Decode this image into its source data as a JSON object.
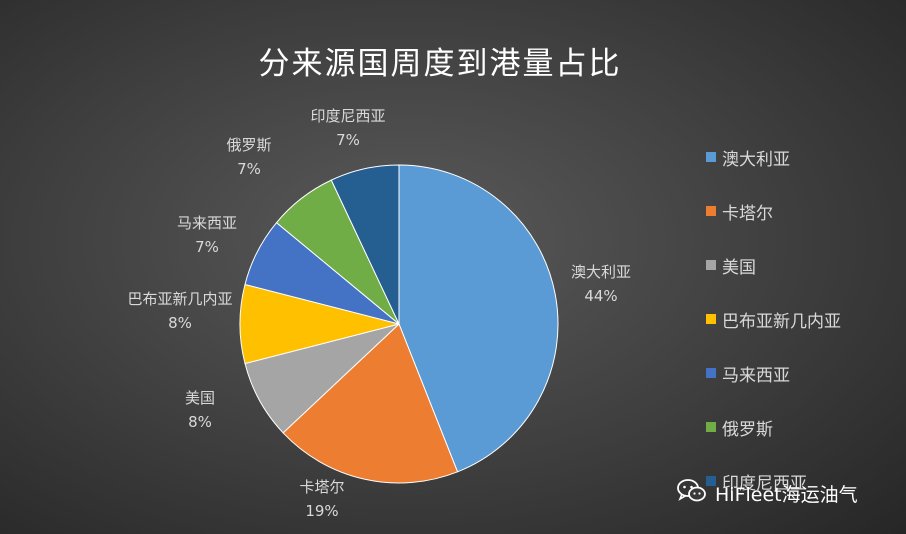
{
  "chart_data": {
    "type": "pie",
    "title": "分来源国周度到港量占比",
    "slices": [
      {
        "label": "澳大利亚",
        "percent": 44,
        "percent_text": "44%",
        "color": "#5b9bd5"
      },
      {
        "label": "卡塔尔",
        "percent": 19,
        "percent_text": "19%",
        "color": "#ed7d31"
      },
      {
        "label": "美国",
        "percent": 8,
        "percent_text": "8%",
        "color": "#a5a5a5"
      },
      {
        "label": "巴布亚新几内亚",
        "percent": 8,
        "percent_text": "8%",
        "color": "#ffc000"
      },
      {
        "label": "马来西亚",
        "percent": 7,
        "percent_text": "7%",
        "color": "#4472c4"
      },
      {
        "label": "俄罗斯",
        "percent": 7,
        "percent_text": "7%",
        "color": "#70ad47"
      },
      {
        "label": "印度尼西亚",
        "percent": 7,
        "percent_text": "7%",
        "color": "#255e91"
      }
    ],
    "legend_position": "right"
  },
  "watermark": {
    "text": "HiFleet海运油气",
    "icon": "wechat-icon"
  }
}
